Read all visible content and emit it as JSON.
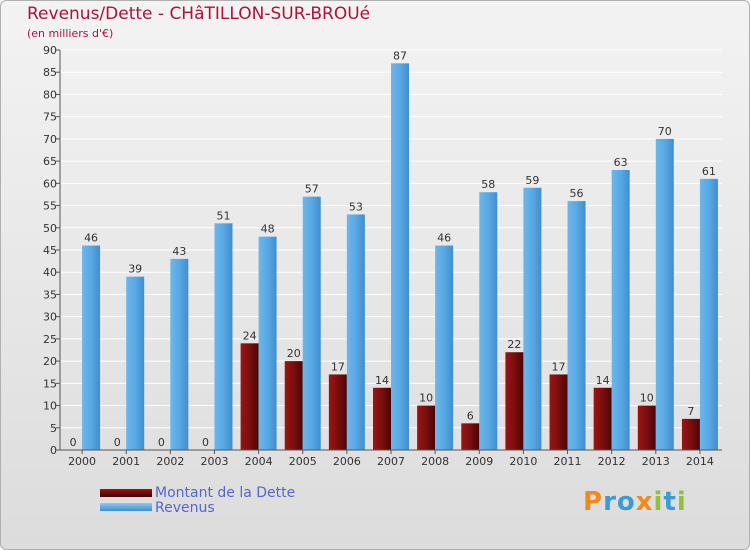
{
  "chart_data": {
    "type": "bar",
    "title": "Revenus/Dette - CHâTILLON-SUR-BROUé",
    "subtitle": "(en milliers d'€)",
    "categories": [
      "2000",
      "2001",
      "2002",
      "2003",
      "2004",
      "2005",
      "2006",
      "2007",
      "2008",
      "2009",
      "2010",
      "2011",
      "2012",
      "2013",
      "2014"
    ],
    "series": [
      {
        "name": "Montant de la Dette",
        "color": "#7a0c0c",
        "values": [
          0,
          0,
          0,
          0,
          24,
          20,
          17,
          14,
          10,
          6,
          22,
          17,
          14,
          10,
          7
        ]
      },
      {
        "name": "Revenus",
        "color": "#4a9fe0",
        "values": [
          46,
          39,
          43,
          51,
          48,
          57,
          53,
          87,
          46,
          58,
          59,
          56,
          63,
          70,
          61
        ]
      }
    ],
    "ylim": [
      0,
      90
    ],
    "yticks": [
      0,
      5,
      10,
      15,
      20,
      25,
      30,
      35,
      40,
      45,
      50,
      55,
      60,
      65,
      70,
      75,
      80,
      85,
      90
    ],
    "xlabel": "",
    "ylabel": "",
    "legend_position": "bottom-left"
  },
  "logo": {
    "letters": [
      "P",
      "r",
      "o",
      "x",
      "i",
      "t",
      "i"
    ],
    "colors": [
      "#f08a1c",
      "#3c9ad6",
      "#3c9ad6",
      "#f08a1c",
      "#8fc13e",
      "#3c9ad6",
      "#8fc13e"
    ]
  }
}
